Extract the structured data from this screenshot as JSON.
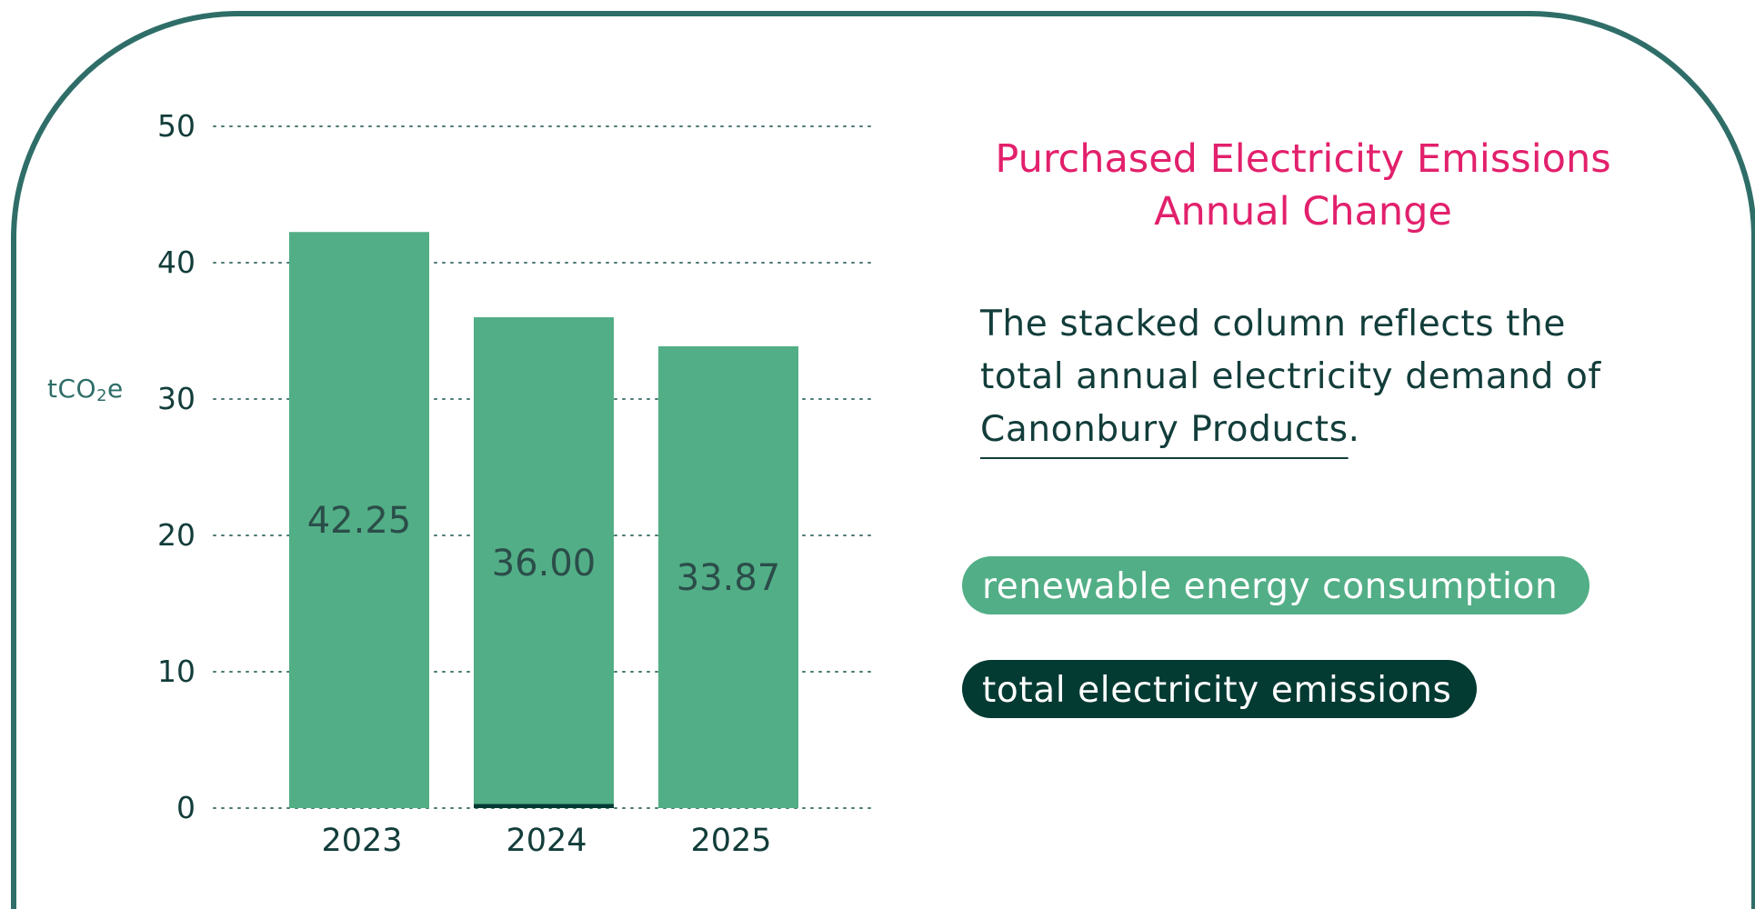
{
  "colors": {
    "border": "#2f6e68",
    "title": "#e2206c",
    "text": "#123d3a",
    "renewable": "#52ae86",
    "total": "#033b33",
    "grid": "#4a7a74"
  },
  "chart_data": {
    "type": "bar",
    "stacked": true,
    "title": "Purchased Electricity Emissions Annual Change",
    "ylabel": "tCO2e",
    "ylim": [
      0,
      50
    ],
    "yticks": [
      "0",
      "10",
      "20",
      "30",
      "40",
      "50"
    ],
    "grid": true,
    "categories": [
      "2023",
      "2024",
      "2025"
    ],
    "series": [
      {
        "name": "total electricity emissions",
        "values": [
          0,
          0.3,
          0
        ]
      },
      {
        "name": "renewable energy consumption",
        "values": [
          42.25,
          35.7,
          33.87
        ]
      }
    ],
    "data_labels": [
      "42.25",
      "36.00",
      "33.87"
    ]
  },
  "title": {
    "line1": "Purchased Electricity Emissions",
    "line2": "Annual Change"
  },
  "description": {
    "line1": "The stacked column reflects the",
    "line2": "total annual electricity demand of",
    "company": "Canonbury Products",
    "period": "."
  },
  "axis": {
    "ylabel_main": "tCO",
    "ylabel_sub": "2",
    "ylabel_end": "e"
  },
  "legend": {
    "renewable": "renewable energy consumption",
    "total": "total electricity emissions"
  }
}
